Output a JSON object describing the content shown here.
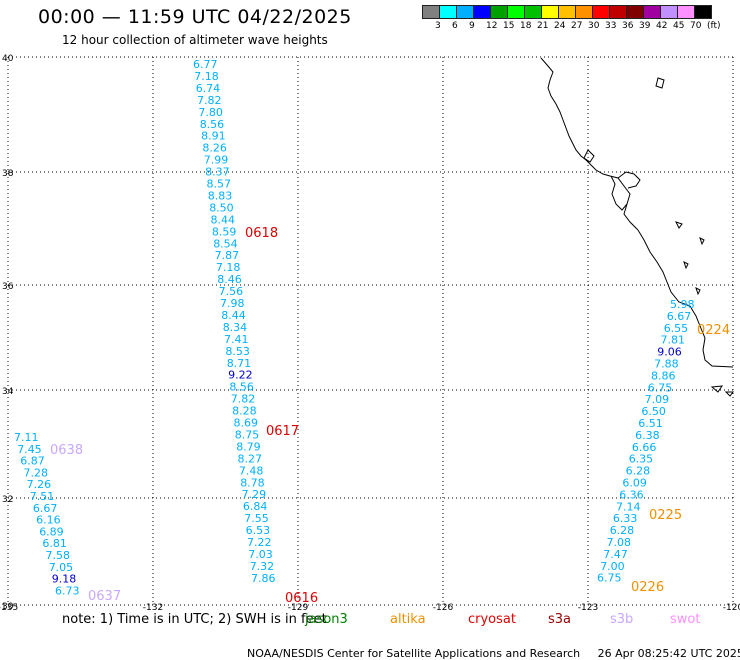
{
  "header": {
    "title": "00:00 — 11:59 UTC 04/22/2025",
    "subtitle": "12 hour collection of altimeter wave heights"
  },
  "legend": {
    "colors": [
      "#808080",
      "#00ffff",
      "#00b0ff",
      "#0000ff",
      "#00a000",
      "#00ff00",
      "#00c000",
      "#ffff00",
      "#ffc000",
      "#ff9000",
      "#ff0000",
      "#c00000",
      "#800000",
      "#a000a0",
      "#c090ff",
      "#ff90ff",
      "#000000"
    ],
    "labels": [
      "3",
      "6",
      "9",
      "12",
      "15",
      "18",
      "21",
      "24",
      "27",
      "30",
      "33",
      "36",
      "39",
      "42",
      "45",
      "70",
      "(ft)"
    ]
  },
  "axes": {
    "lat_labels": [
      "40",
      "38",
      "36",
      "34",
      "32",
      "30"
    ],
    "lon_labels": [
      "-135",
      "-132",
      "-129",
      "-126",
      "-123",
      "-120"
    ]
  },
  "tracks": {
    "track_a": {
      "values": [
        "6.77",
        "7.18",
        "6.74",
        "7.82",
        "7.80",
        "8.56",
        "8.91",
        "8.26",
        "7.99",
        "8.37",
        "8.57",
        "8.83",
        "8.50",
        "8.44",
        "8.59",
        "8.54",
        "7.87",
        "7.18",
        "8.46",
        "7.56",
        "7.98",
        "8.44",
        "8.34",
        "7.41",
        "8.53",
        "8.71",
        "9.22",
        "8.56",
        "7.82",
        "8.28",
        "8.69",
        "8.75",
        "8.79",
        "8.27",
        "7.48",
        "8.78",
        "7.29",
        "6.84",
        "7.55",
        "6.53",
        "7.22",
        "7.03",
        "7.32",
        "7.86"
      ],
      "colors": [
        "#00b0ff",
        "#00b0ff",
        "#00b0ff",
        "#00b0ff",
        "#00b0ff",
        "#00b0ff",
        "#00b0ff",
        "#00b0ff",
        "#00b0ff",
        "#00b0ff",
        "#00b0ff",
        "#00b0ff",
        "#00b0ff",
        "#00b0ff",
        "#00b0ff",
        "#00b0ff",
        "#00b0ff",
        "#00b0ff",
        "#00b0ff",
        "#00b0ff",
        "#00b0ff",
        "#00b0ff",
        "#00b0ff",
        "#00b0ff",
        "#00b0ff",
        "#00b0ff",
        "#0000cc",
        "#00b0ff",
        "#00b0ff",
        "#00b0ff",
        "#00b0ff",
        "#00b0ff",
        "#00b0ff",
        "#00b0ff",
        "#00b0ff",
        "#00b0ff",
        "#00b0ff",
        "#00b0ff",
        "#00b0ff",
        "#00b0ff",
        "#00b0ff",
        "#00b0ff",
        "#00b0ff",
        "#00b0ff"
      ]
    },
    "track_b": {
      "values": [
        "7.11",
        "7.45",
        "6.87",
        "7.28",
        "7.26",
        "7.51",
        "6.67",
        "6.16",
        "6.89",
        "6.81",
        "7.58",
        "7.05",
        "9.18",
        "6.73"
      ],
      "colors": [
        "#00b0ff",
        "#00b0ff",
        "#00b0ff",
        "#00b0ff",
        "#00b0ff",
        "#00b0ff",
        "#00b0ff",
        "#00b0ff",
        "#00b0ff",
        "#00b0ff",
        "#00b0ff",
        "#00b0ff",
        "#0000cc",
        "#00b0ff"
      ]
    },
    "track_c": {
      "values": [
        "5.98",
        "6.67",
        "6.55",
        "7.81",
        "9.06",
        "7.88",
        "8.86",
        "6.75",
        "7.09",
        "6.50",
        "6.51",
        "6.38",
        "6.66",
        "6.35",
        "6.28",
        "6.09",
        "6.36",
        "7.14",
        "6.33",
        "6.28",
        "7.08",
        "7.47",
        "7.00",
        "6.75"
      ],
      "colors": [
        "#00b0ff",
        "#00b0ff",
        "#00b0ff",
        "#00b0ff",
        "#0000cc",
        "#00b0ff",
        "#00b0ff",
        "#00b0ff",
        "#00b0ff",
        "#00b0ff",
        "#00b0ff",
        "#00b0ff",
        "#00b0ff",
        "#00b0ff",
        "#00b0ff",
        "#00b0ff",
        "#00b0ff",
        "#00b0ff",
        "#00b0ff",
        "#00b0ff",
        "#00b0ff",
        "#00b0ff",
        "#00b0ff",
        "#00b0ff"
      ]
    }
  },
  "passes": [
    {
      "label": "0618",
      "color": "#dd0000"
    },
    {
      "label": "0617",
      "color": "#dd0000"
    },
    {
      "label": "0616",
      "color": "#dd0000"
    },
    {
      "label": "0638",
      "color": "#c8a8ff"
    },
    {
      "label": "0637",
      "color": "#c8a8ff"
    },
    {
      "label": "0224",
      "color": "#f09000"
    },
    {
      "label": "0225",
      "color": "#f09000"
    },
    {
      "label": "0226",
      "color": "#f09000"
    }
  ],
  "note": {
    "prefix": "note:  1) Time is in UTC;  2) SWH is in feet",
    "satellites": [
      {
        "name": "jason3",
        "color": "#008000"
      },
      {
        "name": "altika",
        "color": "#f09000"
      },
      {
        "name": "cryosat",
        "color": "#dd0000"
      },
      {
        "name": "s3a",
        "color": "#990000"
      },
      {
        "name": "s3b",
        "color": "#c8a8ff"
      },
      {
        "name": "swot",
        "color": "#ff90ff"
      }
    ]
  },
  "footer": {
    "credit": "NOAA/NESDIS Center for Satellite Applications and Research",
    "timestamp": "26 Apr 08:25:42 UTC 2025"
  }
}
